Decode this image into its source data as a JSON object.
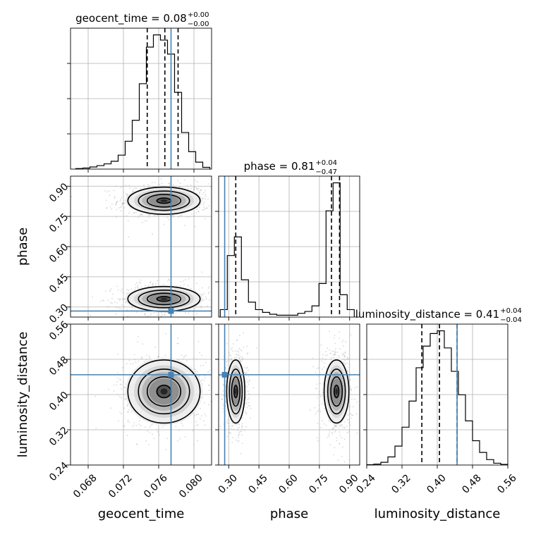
{
  "chart_data": {
    "type": "corner",
    "parameters": [
      "geocent_time",
      "phase",
      "luminosity_distance"
    ],
    "ranges": {
      "geocent_time": [
        0.066,
        0.082
      ],
      "phase": [
        0.25,
        0.95
      ],
      "luminosity_distance": [
        0.24,
        0.56
      ]
    },
    "ticks": {
      "geocent_time": {
        "values": [
          0.068,
          0.072,
          0.076,
          0.08
        ],
        "labels": [
          "0.068",
          "0.072",
          "0.076",
          "0.080"
        ]
      },
      "phase": {
        "values": [
          0.3,
          0.45,
          0.6,
          0.75,
          0.9
        ],
        "labels": [
          "0.30",
          "0.45",
          "0.60",
          "0.75",
          "0.90"
        ]
      },
      "luminosity_distance": {
        "values": [
          0.24,
          0.32,
          0.4,
          0.48,
          0.56
        ],
        "labels": [
          "0.24",
          "0.32",
          "0.40",
          "0.48",
          "0.56"
        ]
      }
    },
    "axis_labels": {
      "geocent_time": "geocent_time",
      "phase": "phase",
      "luminosity_distance": "luminosity_distance"
    },
    "titles": [
      {
        "param": "geocent_time",
        "main": "geocent_time = 0.08",
        "sup": "+0.00",
        "sub": "−0.00"
      },
      {
        "param": "phase",
        "main": "phase = 0.81",
        "sup": "+0.04",
        "sub": "−0.47"
      },
      {
        "param": "luminosity_distance",
        "main": "luminosity_distance = 0.41",
        "sup": "+0.04",
        "sub": "−0.04"
      }
    ],
    "truths": {
      "geocent_time": 0.0774,
      "phase": 0.28,
      "luminosity_distance": 0.445
    },
    "quantiles": {
      "geocent_time": [
        0.0747,
        0.0767,
        0.0782
      ],
      "phase": [
        0.335,
        0.81,
        0.85
      ],
      "luminosity_distance": [
        0.365,
        0.405,
        0.445
      ]
    },
    "histograms": {
      "geocent_time": {
        "edges": [
          0.0666,
          0.0674,
          0.0682,
          0.069,
          0.0698,
          0.0706,
          0.0714,
          0.0722,
          0.073,
          0.0738,
          0.0746,
          0.0754,
          0.0762,
          0.077,
          0.0778,
          0.0786,
          0.0794,
          0.0802,
          0.081,
          0.0818
        ],
        "counts": [
          0.3,
          0.6,
          1.2,
          2.0,
          3.0,
          4.5,
          8.0,
          16.0,
          28.0,
          49.0,
          70.0,
          77.0,
          74.0,
          66.0,
          44.0,
          21.0,
          10.0,
          4.0,
          1.0
        ]
      },
      "phase": {
        "edges": [
          0.258,
          0.293,
          0.328,
          0.363,
          0.398,
          0.433,
          0.468,
          0.503,
          0.538,
          0.573,
          0.608,
          0.643,
          0.678,
          0.713,
          0.748,
          0.783,
          0.818,
          0.853,
          0.888,
          0.923
        ],
        "counts": [
          4,
          33,
          43,
          20,
          8,
          4,
          2.5,
          1.5,
          1,
          1,
          1,
          2,
          3,
          6,
          18,
          57,
          72,
          12,
          4
        ]
      },
      "luminosity_distance": {
        "edges": [
          0.24,
          0.256,
          0.272,
          0.288,
          0.304,
          0.32,
          0.336,
          0.352,
          0.368,
          0.384,
          0.4,
          0.416,
          0.432,
          0.448,
          0.464,
          0.48,
          0.496,
          0.512,
          0.528,
          0.544,
          0.56
        ],
        "counts": [
          0.3,
          1.0,
          3.0,
          9.0,
          21.0,
          42.0,
          71.0,
          108.0,
          132.0,
          146.0,
          149.0,
          130.0,
          104.0,
          78.0,
          49.0,
          27.0,
          14.0,
          6.0,
          2.0,
          0.7
        ]
      }
    },
    "modes_2d": {
      "phase_vs_geocent_time": [
        {
          "center": [
            0.0766,
            0.828
          ],
          "spread": [
            0.002,
            0.033
          ]
        },
        {
          "center": [
            0.0766,
            0.34
          ],
          "spread": [
            0.002,
            0.03
          ]
        }
      ],
      "luminosity_distance_vs_geocent_time": [
        {
          "center": [
            0.0766,
            0.407
          ],
          "spread": [
            0.002,
            0.035
          ]
        }
      ],
      "luminosity_distance_vs_phase": [
        {
          "center": [
            0.335,
            0.407
          ],
          "spread": [
            0.022,
            0.035
          ]
        },
        {
          "center": [
            0.835,
            0.407
          ],
          "spread": [
            0.03,
            0.035
          ]
        }
      ]
    },
    "colors": {
      "truth": "#4682b4",
      "line": "#000000",
      "scatter": "#aaaaaa"
    },
    "grid": true
  }
}
